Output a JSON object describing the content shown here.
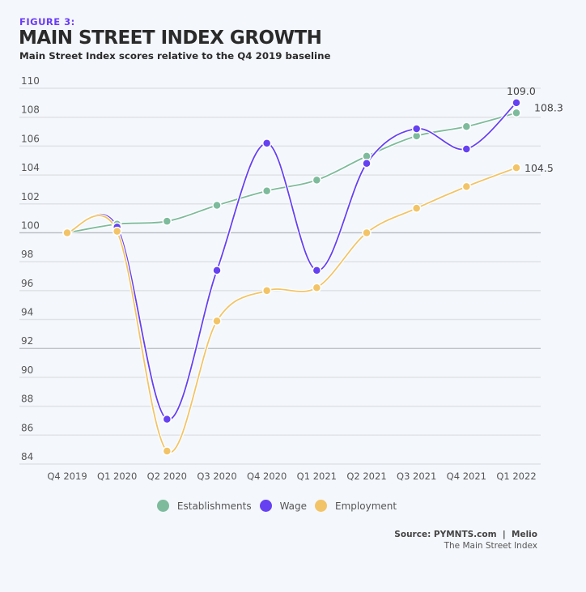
{
  "header": {
    "figure_label": "FIGURE 3:",
    "title": "MAIN STREET INDEX GROWTH",
    "subtitle": "Main Street Index scores relative to the Q4 2019 baseline"
  },
  "chart_data": {
    "type": "line",
    "title": "MAIN STREET INDEX GROWTH",
    "subtitle": "Main Street Index scores relative to the Q4 2019 baseline",
    "xlabel": "",
    "ylabel": "",
    "categories": [
      "Q4 2019",
      "Q1 2020",
      "Q2 2020",
      "Q3 2020",
      "Q4 2020",
      "Q1 2021",
      "Q2 2021",
      "Q3 2021",
      "Q4 2021",
      "Q1 2022"
    ],
    "ylim": [
      84,
      110
    ],
    "yticks": [
      84,
      86,
      88,
      90,
      92,
      94,
      96,
      98,
      100,
      102,
      104,
      106,
      108,
      110
    ],
    "grid": true,
    "legend_position": "bottom-center",
    "series": [
      {
        "name": "Establishments",
        "color": "#7dbb9c",
        "values": [
          100.0,
          100.6,
          100.8,
          101.9,
          102.9,
          103.65,
          105.3,
          106.7,
          107.35,
          108.3
        ],
        "end_label": "108.3"
      },
      {
        "name": "Wage",
        "color": "#6541f2",
        "values": [
          100.0,
          100.4,
          87.1,
          97.4,
          106.2,
          97.4,
          104.8,
          107.2,
          105.8,
          109.0
        ],
        "end_label": "109.0"
      },
      {
        "name": "Employment",
        "color": "#f2c467",
        "values": [
          100.0,
          100.1,
          84.9,
          93.9,
          96.0,
          96.2,
          100.0,
          101.7,
          103.2,
          104.5
        ],
        "end_label": "104.5"
      }
    ]
  },
  "legend": [
    {
      "label": "Establishments",
      "color": "#7dbb9c"
    },
    {
      "label": "Wage",
      "color": "#6541f2"
    },
    {
      "label": "Employment",
      "color": "#f2c467"
    }
  ],
  "source": {
    "line1": "Source: PYMNTS.com  |  Melio",
    "line2": "The Main Street Index"
  }
}
